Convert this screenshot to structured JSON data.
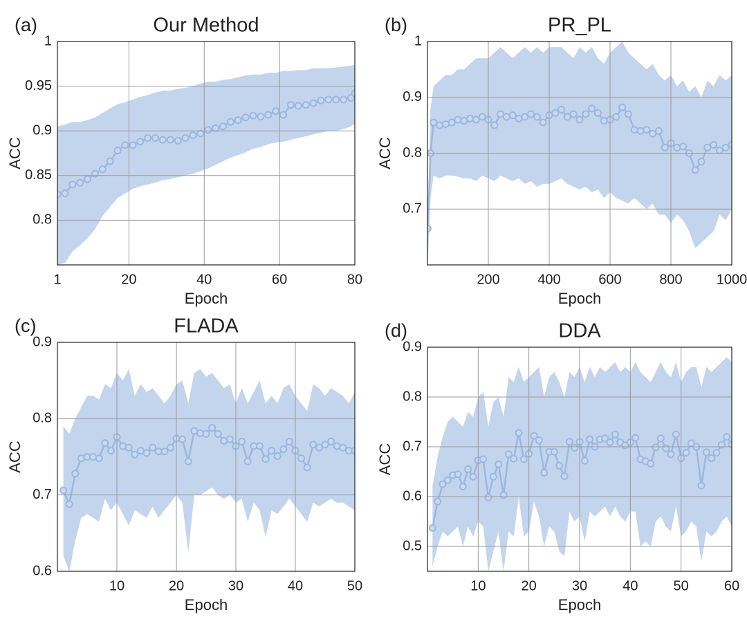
{
  "chart_data": [
    {
      "type": "line",
      "panel_label": "(a)",
      "title": "Our Method",
      "xlabel": "Epoch",
      "ylabel": "ACC",
      "xlim": [
        1,
        80
      ],
      "xticks": [
        1,
        20,
        40,
        60,
        80
      ],
      "ylim": [
        0.75,
        1
      ],
      "yticks": [
        0.8,
        0.85,
        0.9,
        0.95,
        1
      ],
      "grid": true,
      "color": "#9ab8e0",
      "band_color": "#b9cdea",
      "x": [
        1,
        3,
        5,
        7,
        9,
        11,
        13,
        15,
        17,
        19,
        21,
        23,
        25,
        27,
        29,
        31,
        33,
        35,
        37,
        39,
        41,
        43,
        45,
        47,
        49,
        51,
        53,
        55,
        57,
        59,
        61,
        63,
        65,
        67,
        69,
        71,
        73,
        75,
        77,
        79,
        80
      ],
      "values": [
        0.829,
        0.83,
        0.84,
        0.842,
        0.846,
        0.852,
        0.857,
        0.866,
        0.878,
        0.884,
        0.884,
        0.888,
        0.892,
        0.892,
        0.89,
        0.89,
        0.889,
        0.892,
        0.895,
        0.897,
        0.901,
        0.903,
        0.905,
        0.91,
        0.912,
        0.915,
        0.917,
        0.916,
        0.918,
        0.922,
        0.918,
        0.929,
        0.928,
        0.929,
        0.931,
        0.934,
        0.935,
        0.935,
        0.935,
        0.937,
        0.942
      ],
      "band_upper": [
        0.905,
        0.907,
        0.91,
        0.91,
        0.912,
        0.915,
        0.92,
        0.925,
        0.93,
        0.932,
        0.935,
        0.938,
        0.94,
        0.943,
        0.945,
        0.945,
        0.947,
        0.948,
        0.95,
        0.953,
        0.955,
        0.955,
        0.957,
        0.958,
        0.96,
        0.962,
        0.963,
        0.963,
        0.965,
        0.965,
        0.967,
        0.967,
        0.968,
        0.968,
        0.97,
        0.97,
        0.97,
        0.971,
        0.972,
        0.973,
        0.974
      ],
      "band_lower": [
        0.75,
        0.752,
        0.765,
        0.772,
        0.78,
        0.79,
        0.805,
        0.815,
        0.825,
        0.83,
        0.835,
        0.838,
        0.84,
        0.842,
        0.845,
        0.846,
        0.848,
        0.85,
        0.852,
        0.855,
        0.858,
        0.862,
        0.866,
        0.87,
        0.873,
        0.876,
        0.88,
        0.882,
        0.885,
        0.887,
        0.888,
        0.89,
        0.892,
        0.894,
        0.896,
        0.898,
        0.9,
        0.9,
        0.902,
        0.905,
        0.908
      ]
    },
    {
      "type": "line",
      "panel_label": "(b)",
      "title": "PR_PL",
      "xlabel": "Epoch",
      "ylabel": "ACC",
      "xlim": [
        0,
        1000
      ],
      "xticks": [
        200,
        400,
        600,
        800,
        1000
      ],
      "ylim": [
        0.6,
        1
      ],
      "yticks": [
        0.7,
        0.8,
        0.9,
        1
      ],
      "grid": true,
      "color": "#9ab8e0",
      "band_color": "#b9cdea",
      "x": [
        1,
        10,
        20,
        40,
        60,
        80,
        100,
        120,
        140,
        160,
        180,
        200,
        220,
        240,
        260,
        280,
        300,
        320,
        340,
        360,
        380,
        400,
        420,
        440,
        460,
        480,
        500,
        520,
        540,
        560,
        580,
        600,
        620,
        640,
        660,
        680,
        700,
        720,
        740,
        760,
        780,
        800,
        820,
        840,
        860,
        880,
        900,
        920,
        940,
        960,
        980,
        1000
      ],
      "values": [
        0.665,
        0.8,
        0.855,
        0.85,
        0.852,
        0.855,
        0.86,
        0.858,
        0.862,
        0.86,
        0.865,
        0.86,
        0.85,
        0.87,
        0.865,
        0.868,
        0.862,
        0.865,
        0.87,
        0.865,
        0.855,
        0.868,
        0.872,
        0.878,
        0.865,
        0.87,
        0.86,
        0.87,
        0.88,
        0.872,
        0.858,
        0.86,
        0.865,
        0.882,
        0.87,
        0.842,
        0.84,
        0.842,
        0.835,
        0.84,
        0.81,
        0.818,
        0.81,
        0.812,
        0.8,
        0.77,
        0.785,
        0.81,
        0.815,
        0.805,
        0.81,
        0.815
      ],
      "band_upper": [
        0.68,
        0.88,
        0.92,
        0.93,
        0.94,
        0.94,
        0.95,
        0.95,
        0.96,
        0.97,
        0.97,
        0.97,
        0.98,
        0.99,
        0.98,
        0.97,
        0.98,
        0.99,
        0.98,
        0.99,
        0.98,
        0.99,
        0.99,
        0.99,
        0.98,
        0.97,
        0.99,
        0.98,
        0.99,
        0.97,
        0.96,
        0.98,
        0.99,
        1.0,
        0.98,
        0.97,
        0.96,
        0.95,
        0.96,
        0.94,
        0.93,
        0.94,
        0.92,
        0.93,
        0.91,
        0.92,
        0.9,
        0.93,
        0.92,
        0.94,
        0.93,
        0.94
      ],
      "band_lower": [
        0.6,
        0.72,
        0.76,
        0.755,
        0.76,
        0.76,
        0.758,
        0.755,
        0.755,
        0.75,
        0.76,
        0.755,
        0.75,
        0.76,
        0.755,
        0.75,
        0.755,
        0.745,
        0.75,
        0.74,
        0.745,
        0.745,
        0.75,
        0.755,
        0.745,
        0.74,
        0.735,
        0.74,
        0.73,
        0.735,
        0.72,
        0.73,
        0.72,
        0.715,
        0.71,
        0.72,
        0.71,
        0.7,
        0.71,
        0.69,
        0.69,
        0.675,
        0.69,
        0.68,
        0.66,
        0.63,
        0.64,
        0.65,
        0.66,
        0.69,
        0.68,
        0.7
      ]
    },
    {
      "type": "line",
      "panel_label": "(c)",
      "title": "FLADA",
      "xlabel": "Epoch",
      "ylabel": "ACC",
      "xlim": [
        0,
        50
      ],
      "xticks": [
        10,
        20,
        30,
        40,
        50
      ],
      "ylim": [
        0.6,
        0.9
      ],
      "yticks": [
        0.6,
        0.7,
        0.8,
        0.9
      ],
      "grid": true,
      "color": "#9ab8e0",
      "band_color": "#b9cdea",
      "x": [
        1,
        2,
        3,
        4,
        5,
        6,
        7,
        8,
        9,
        10,
        11,
        12,
        13,
        14,
        15,
        16,
        17,
        18,
        19,
        20,
        21,
        22,
        23,
        24,
        25,
        26,
        27,
        28,
        29,
        30,
        31,
        32,
        33,
        34,
        35,
        36,
        37,
        38,
        39,
        40,
        41,
        42,
        43,
        44,
        45,
        46,
        47,
        48,
        49,
        50
      ],
      "values": [
        0.706,
        0.688,
        0.728,
        0.748,
        0.75,
        0.75,
        0.748,
        0.768,
        0.758,
        0.776,
        0.764,
        0.762,
        0.753,
        0.758,
        0.755,
        0.762,
        0.757,
        0.757,
        0.762,
        0.774,
        0.773,
        0.744,
        0.784,
        0.781,
        0.78,
        0.788,
        0.78,
        0.771,
        0.773,
        0.764,
        0.77,
        0.744,
        0.764,
        0.764,
        0.747,
        0.758,
        0.751,
        0.76,
        0.77,
        0.758,
        0.748,
        0.736,
        0.766,
        0.762,
        0.766,
        0.77,
        0.764,
        0.762,
        0.758,
        0.758
      ],
      "band_upper": [
        0.79,
        0.78,
        0.8,
        0.815,
        0.83,
        0.83,
        0.825,
        0.845,
        0.84,
        0.86,
        0.85,
        0.865,
        0.83,
        0.845,
        0.835,
        0.84,
        0.83,
        0.82,
        0.83,
        0.845,
        0.85,
        0.82,
        0.86,
        0.865,
        0.855,
        0.86,
        0.85,
        0.84,
        0.845,
        0.82,
        0.84,
        0.82,
        0.835,
        0.85,
        0.82,
        0.83,
        0.82,
        0.84,
        0.845,
        0.83,
        0.82,
        0.81,
        0.845,
        0.84,
        0.83,
        0.84,
        0.835,
        0.83,
        0.82,
        0.835
      ],
      "band_lower": [
        0.62,
        0.6,
        0.64,
        0.67,
        0.675,
        0.67,
        0.665,
        0.695,
        0.68,
        0.69,
        0.675,
        0.66,
        0.68,
        0.675,
        0.67,
        0.685,
        0.67,
        0.68,
        0.69,
        0.7,
        0.69,
        0.625,
        0.7,
        0.7,
        0.705,
        0.71,
        0.7,
        0.695,
        0.7,
        0.69,
        0.695,
        0.665,
        0.69,
        0.68,
        0.645,
        0.68,
        0.675,
        0.685,
        0.695,
        0.685,
        0.675,
        0.665,
        0.69,
        0.685,
        0.69,
        0.695,
        0.69,
        0.69,
        0.685,
        0.68
      ]
    },
    {
      "type": "line",
      "panel_label": "(d)",
      "title": "DDA",
      "xlabel": "Epoch",
      "ylabel": "ACC",
      "xlim": [
        0,
        60
      ],
      "xticks": [
        10,
        20,
        30,
        40,
        50,
        60
      ],
      "ylim": [
        0.45,
        0.9
      ],
      "yticks": [
        0.5,
        0.6,
        0.7,
        0.8,
        0.9
      ],
      "grid": true,
      "color": "#9ab8e0",
      "band_color": "#b9cdea",
      "x": [
        1,
        2,
        3,
        4,
        5,
        6,
        7,
        8,
        9,
        10,
        11,
        12,
        13,
        14,
        15,
        16,
        17,
        18,
        19,
        20,
        21,
        22,
        23,
        24,
        25,
        26,
        27,
        28,
        29,
        30,
        31,
        32,
        33,
        34,
        35,
        36,
        37,
        38,
        39,
        40,
        41,
        42,
        43,
        44,
        45,
        46,
        47,
        48,
        49,
        50,
        51,
        52,
        53,
        54,
        55,
        56,
        57,
        58,
        59,
        60
      ],
      "values": [
        0.537,
        0.59,
        0.625,
        0.633,
        0.643,
        0.645,
        0.62,
        0.655,
        0.64,
        0.673,
        0.675,
        0.598,
        0.64,
        0.665,
        0.603,
        0.685,
        0.676,
        0.728,
        0.675,
        0.686,
        0.722,
        0.713,
        0.648,
        0.69,
        0.69,
        0.662,
        0.641,
        0.71,
        0.698,
        0.71,
        0.672,
        0.715,
        0.7,
        0.715,
        0.717,
        0.709,
        0.725,
        0.709,
        0.703,
        0.709,
        0.718,
        0.675,
        0.671,
        0.666,
        0.699,
        0.717,
        0.697,
        0.685,
        0.725,
        0.677,
        0.688,
        0.707,
        0.7,
        0.622,
        0.689,
        0.677,
        0.688,
        0.704,
        0.72,
        0.704
      ],
      "band_upper": [
        0.62,
        0.68,
        0.72,
        0.75,
        0.76,
        0.75,
        0.74,
        0.77,
        0.76,
        0.8,
        0.81,
        0.74,
        0.79,
        0.8,
        0.76,
        0.84,
        0.83,
        0.86,
        0.83,
        0.84,
        0.85,
        0.86,
        0.8,
        0.84,
        0.85,
        0.83,
        0.8,
        0.85,
        0.84,
        0.86,
        0.83,
        0.86,
        0.84,
        0.86,
        0.85,
        0.86,
        0.87,
        0.85,
        0.86,
        0.85,
        0.87,
        0.85,
        0.84,
        0.83,
        0.85,
        0.87,
        0.85,
        0.84,
        0.87,
        0.83,
        0.85,
        0.86,
        0.86,
        0.82,
        0.86,
        0.85,
        0.86,
        0.87,
        0.88,
        0.87
      ],
      "band_lower": [
        0.46,
        0.5,
        0.53,
        0.52,
        0.53,
        0.54,
        0.5,
        0.54,
        0.52,
        0.55,
        0.54,
        0.45,
        0.49,
        0.53,
        0.45,
        0.53,
        0.52,
        0.6,
        0.52,
        0.53,
        0.59,
        0.56,
        0.5,
        0.54,
        0.53,
        0.49,
        0.48,
        0.57,
        0.55,
        0.56,
        0.51,
        0.57,
        0.56,
        0.57,
        0.58,
        0.56,
        0.58,
        0.56,
        0.55,
        0.57,
        0.57,
        0.5,
        0.51,
        0.5,
        0.55,
        0.56,
        0.54,
        0.53,
        0.58,
        0.52,
        0.53,
        0.55,
        0.54,
        0.47,
        0.53,
        0.52,
        0.53,
        0.55,
        0.56,
        0.54
      ]
    }
  ]
}
